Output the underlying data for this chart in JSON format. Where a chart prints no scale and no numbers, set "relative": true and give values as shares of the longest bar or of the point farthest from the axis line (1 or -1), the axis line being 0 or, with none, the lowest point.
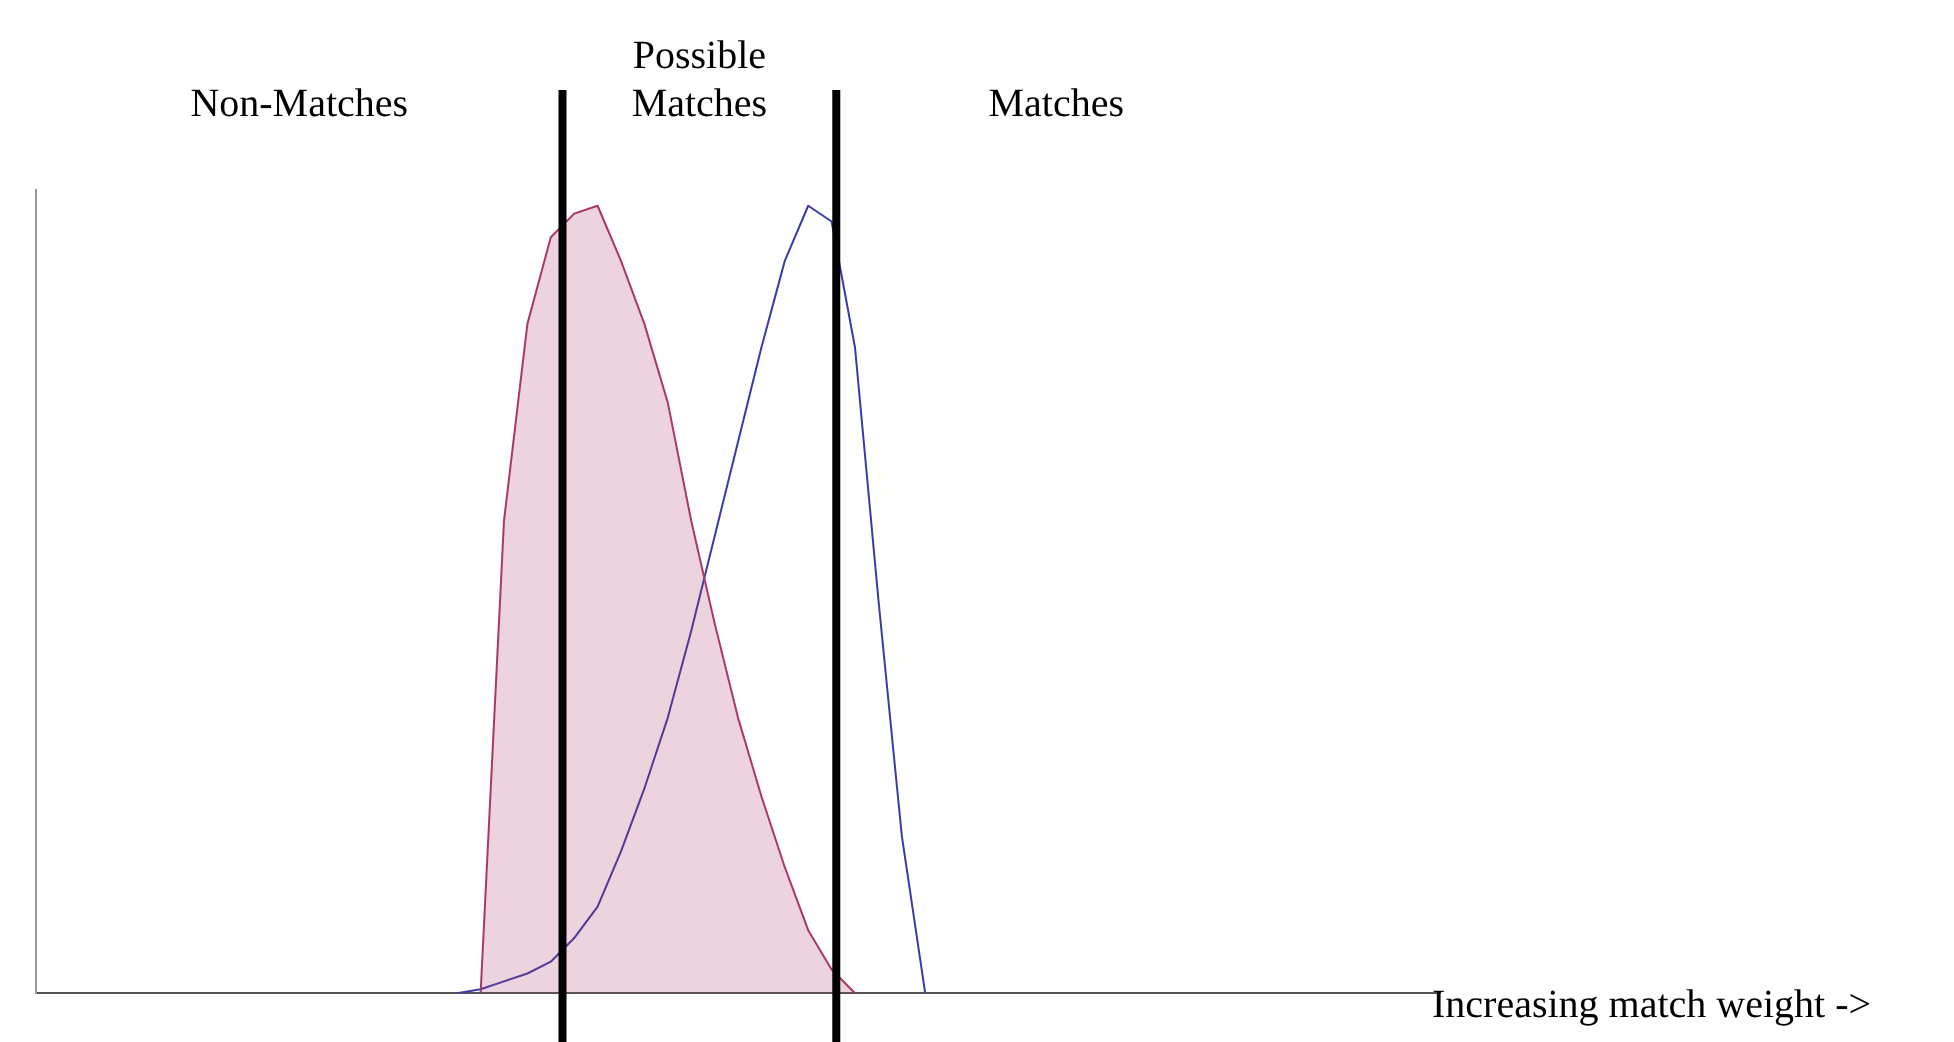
{
  "chart_data": {
    "type": "line",
    "relative": true,
    "legend": false,
    "marker": "none",
    "xlabel": "Increasing match weight ->",
    "categories": [
      null,
      null,
      null,
      null,
      null,
      null,
      null,
      null,
      null,
      null,
      null,
      null,
      null,
      null,
      null,
      null,
      null,
      null,
      null,
      null,
      null,
      null,
      null,
      null,
      null,
      null,
      null,
      null,
      null,
      null,
      null,
      null,
      null,
      null,
      null,
      null,
      null,
      null,
      null,
      null,
      null,
      null,
      null,
      null,
      null,
      null,
      null,
      null,
      null,
      null,
      null,
      null,
      null,
      null,
      null,
      null,
      null,
      null,
      null,
      null,
      null
    ],
    "series": [
      {
        "type": "area",
        "color": "#a8386a",
        "values": [
          null,
          null,
          null,
          null,
          null,
          null,
          null,
          null,
          null,
          null,
          null,
          null,
          null,
          null,
          null,
          null,
          null,
          null,
          null,
          0,
          0.6,
          0.85,
          0.96,
          0.99,
          1.0,
          0.93,
          0.85,
          0.75,
          0.6,
          0.47,
          0.35,
          0.25,
          0.16,
          0.08,
          0.03,
          0,
          null,
          null,
          null,
          null,
          null,
          null,
          null,
          null,
          null,
          null,
          null,
          null,
          null,
          null,
          null,
          null,
          null,
          null,
          null,
          null,
          null,
          null,
          null,
          null,
          null
        ]
      },
      {
        "type": "line",
        "color": "#3a3aa8",
        "values": [
          null,
          null,
          null,
          null,
          null,
          null,
          null,
          null,
          null,
          null,
          null,
          null,
          null,
          null,
          null,
          null,
          null,
          null,
          0,
          0.005,
          0.015,
          0.025,
          0.04,
          0.07,
          0.11,
          0.18,
          0.26,
          0.35,
          0.46,
          0.58,
          0.7,
          0.82,
          0.93,
          1.0,
          0.98,
          0.82,
          0.5,
          0.2,
          0,
          null,
          null,
          null,
          null,
          null,
          null,
          null,
          null,
          null,
          null,
          null,
          null,
          null,
          null,
          null,
          null,
          null,
          null,
          null,
          null,
          null,
          null
        ]
      }
    ],
    "annotations": [
      "Non-Matches",
      "Possible Matches",
      "Matches"
    ]
  }
}
